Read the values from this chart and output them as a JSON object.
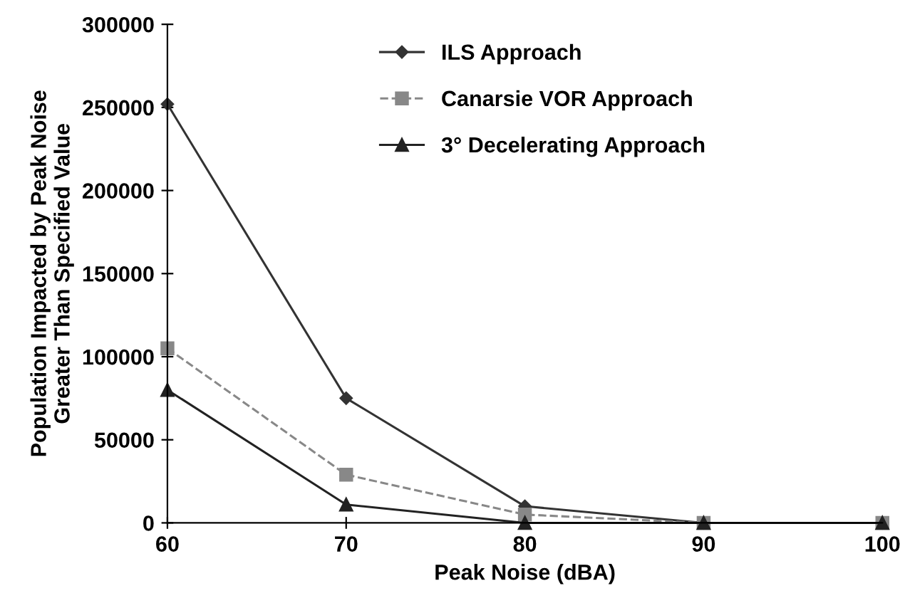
{
  "chart_data": {
    "type": "line",
    "xlabel": "Peak Noise (dBA)",
    "ylabel": "Population Impacted by Peak Noise\nGreater Than Specified Value",
    "x": [
      60,
      70,
      80,
      90,
      100
    ],
    "series": [
      {
        "name": "ILS Approach",
        "color": "#333333",
        "marker": "diamond",
        "line_style": "solid",
        "values": [
          252000,
          75000,
          10000,
          0,
          0
        ]
      },
      {
        "name": "Canarsie VOR Approach",
        "color": "#888888",
        "marker": "square",
        "line_style": "dashed",
        "values": [
          105000,
          29000,
          5000,
          0,
          0
        ]
      },
      {
        "name": "3° Decelerating Approach",
        "color": "#222222",
        "marker": "triangle",
        "line_style": "solid",
        "values": [
          80000,
          11000,
          0,
          0,
          0
        ]
      }
    ],
    "xlim": [
      60,
      100
    ],
    "xticks": [
      60,
      70,
      80,
      90,
      100
    ],
    "ylim": [
      0,
      300000
    ],
    "yticks": [
      0,
      50000,
      100000,
      150000,
      200000,
      250000,
      300000
    ],
    "grid": false,
    "legend": "top right"
  }
}
